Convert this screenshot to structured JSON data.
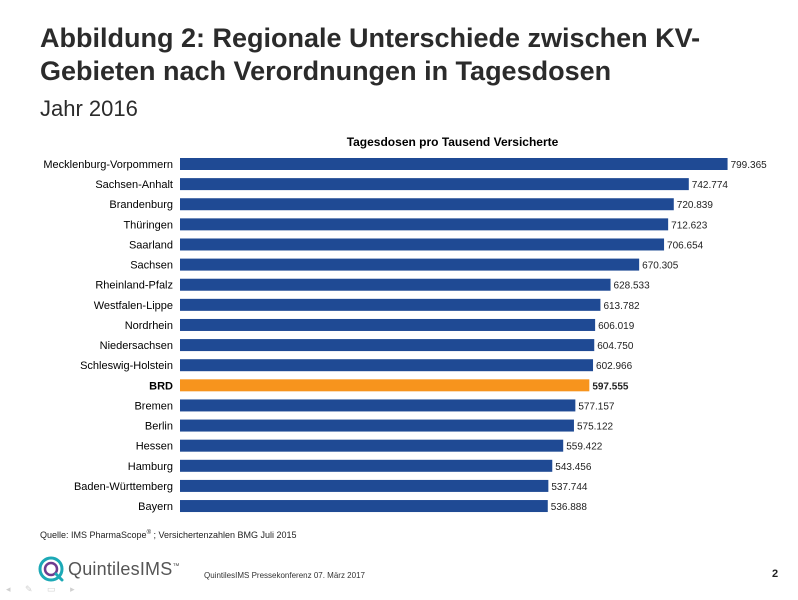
{
  "header": {
    "title": "Abbildung 2: Regionale Unterschiede zwischen KV-Gebieten nach Verordnungen in Tagesdosen",
    "subtitle": "Jahr 2016"
  },
  "chart_data": {
    "type": "bar",
    "orientation": "horizontal",
    "title": "Tagesdosen pro Tausend Versicherte",
    "xlabel": "",
    "ylabel": "",
    "xlim": [
      0,
      800
    ],
    "grid": false,
    "highlight_category": "BRD",
    "categories": [
      "Mecklenburg-Vorpommern",
      "Sachsen-Anhalt",
      "Brandenburg",
      "Thüringen",
      "Saarland",
      "Sachsen",
      "Rheinland-Pfalz",
      "Westfalen-Lippe",
      "Nordrhein",
      "Niedersachsen",
      "Schleswig-Holstein",
      "BRD",
      "Bremen",
      "Berlin",
      "Hessen",
      "Hamburg",
      "Baden-Württemberg",
      "Bayern"
    ],
    "values": [
      799.365,
      742.774,
      720.839,
      712.623,
      706.654,
      670.305,
      628.533,
      613.782,
      606.019,
      604.75,
      602.966,
      597.555,
      577.157,
      575.122,
      559.422,
      543.456,
      537.744,
      536.888
    ],
    "labels": [
      "799.365",
      "742.774",
      "720.839",
      "712.623",
      "706.654",
      "670.305",
      "628.533",
      "613.782",
      "606.019",
      "604.750",
      "602.966",
      "597.555",
      "577.157",
      "575.122",
      "559.422",
      "543.456",
      "537.744",
      "536.888"
    ]
  },
  "colors": {
    "bar": "#1f4a94",
    "highlight": "#f7941d"
  },
  "source": {
    "prefix": "Quelle: IMS PharmaScope",
    "sup": "®",
    "suffix": " ; Versichertenzahlen BMG Juli 2015"
  },
  "footer": {
    "logo_text": "QuintilesIMS",
    "logo_tm": "™",
    "event": "QuintilesIMS Pressekonferenz 07. März 2017",
    "page_number": "2"
  }
}
